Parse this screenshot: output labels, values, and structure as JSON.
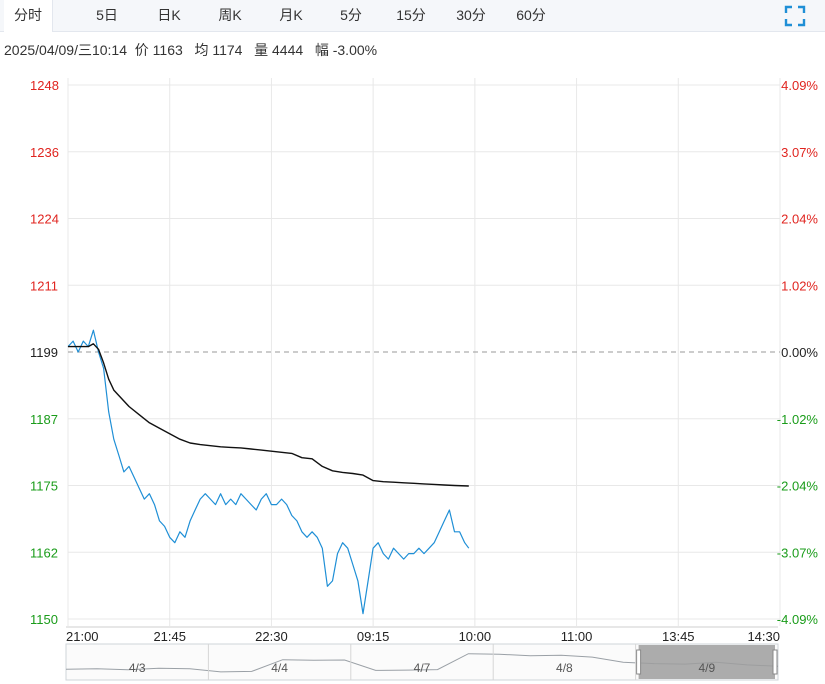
{
  "tabs": [
    "分时",
    "5日",
    "日K",
    "周K",
    "月K",
    "5分",
    "15分",
    "30分",
    "60分"
  ],
  "active_tab": "分时",
  "info": {
    "datetime": "2025/04/09/三10:14",
    "price_label": "价",
    "price": "1163",
    "avg_label": "均",
    "avg": "1174",
    "vol_label": "量",
    "vol": "4444",
    "chg_label": "幅",
    "chg": "-3.00%"
  },
  "colors": {
    "up": "#e0241f",
    "down": "#1a9c1a",
    "price_line": "#1f8fd6",
    "avg_line": "#111111",
    "grid": "#e8e8e8"
  },
  "chart_data": {
    "type": "line",
    "prev_close": 1199,
    "ylim": [
      1150,
      1248
    ],
    "y_ticks_left": [
      "1248",
      "1236",
      "1224",
      "1211",
      "1199",
      "1187",
      "1175",
      "1162",
      "1150"
    ],
    "y_ticks_right": [
      "4.09%",
      "3.07%",
      "2.04%",
      "1.02%",
      "0.00%",
      "-1.02%",
      "-2.04%",
      "-3.07%",
      "-4.09%"
    ],
    "x_ticks": [
      "21:00",
      "21:45",
      "22:30",
      "09:15",
      "10:00",
      "11:00",
      "13:45",
      "14:30"
    ],
    "x_tick_slots": [
      0,
      1,
      2,
      3,
      4,
      5,
      6,
      7
    ],
    "series": [
      {
        "role": "price",
        "x": [
          0,
          0.05,
          0.1,
          0.15,
          0.2,
          0.25,
          0.3,
          0.35,
          0.4,
          0.45,
          0.5,
          0.55,
          0.6,
          0.65,
          0.7,
          0.75,
          0.8,
          0.85,
          0.9,
          0.95,
          1.0,
          1.05,
          1.1,
          1.15,
          1.2,
          1.25,
          1.3,
          1.35,
          1.4,
          1.45,
          1.5,
          1.55,
          1.6,
          1.65,
          1.7,
          1.75,
          1.8,
          1.85,
          1.9,
          1.95,
          2.0,
          2.05,
          2.1,
          2.15,
          2.2,
          2.25,
          2.3,
          2.35,
          2.4,
          2.45,
          2.5,
          2.55,
          2.6,
          2.65,
          2.7,
          2.75,
          2.8,
          2.85,
          2.9,
          2.95,
          3.0,
          3.05,
          3.1,
          3.15,
          3.2,
          3.25,
          3.3,
          3.35,
          3.4,
          3.45,
          3.5,
          3.55,
          3.6,
          3.65,
          3.7,
          3.75,
          3.8,
          3.85,
          3.9,
          3.94
        ],
        "values": [
          1200,
          1201,
          1199,
          1201,
          1200,
          1203,
          1199,
          1196,
          1188,
          1183,
          1180,
          1177,
          1178,
          1176,
          1174,
          1172,
          1173,
          1171,
          1168,
          1167,
          1165,
          1164,
          1166,
          1165,
          1168,
          1170,
          1172,
          1173,
          1172,
          1171,
          1173,
          1171,
          1172,
          1171,
          1173,
          1172,
          1171,
          1170,
          1172,
          1173,
          1171,
          1171,
          1172,
          1171,
          1169,
          1168,
          1166,
          1165,
          1166,
          1165,
          1163,
          1156,
          1157,
          1162,
          1164,
          1163,
          1160,
          1157,
          1151,
          1157,
          1163,
          1164,
          1162,
          1161,
          1163,
          1162,
          1161,
          1162,
          1162,
          1163,
          1162,
          1163,
          1164,
          1166,
          1168,
          1170,
          1166,
          1166,
          1164,
          1163
        ]
      },
      {
        "role": "average",
        "x": [
          0,
          0.1,
          0.2,
          0.25,
          0.3,
          0.35,
          0.4,
          0.45,
          0.5,
          0.6,
          0.7,
          0.8,
          0.9,
          1.0,
          1.1,
          1.2,
          1.3,
          1.4,
          1.5,
          1.6,
          1.7,
          1.8,
          1.9,
          2.0,
          2.1,
          2.2,
          2.3,
          2.4,
          2.5,
          2.6,
          2.7,
          2.8,
          2.9,
          3.0,
          3.1,
          3.2,
          3.3,
          3.4,
          3.5,
          3.6,
          3.7,
          3.8,
          3.94
        ],
        "values": [
          1200,
          1200,
          1200,
          1200.5,
          1199.5,
          1197,
          1194,
          1192,
          1191,
          1189,
          1187.5,
          1186,
          1185,
          1184,
          1183,
          1182.3,
          1182,
          1181.8,
          1181.6,
          1181.5,
          1181.4,
          1181.2,
          1181,
          1180.8,
          1180.6,
          1180.4,
          1179.6,
          1179.4,
          1178,
          1177.2,
          1176.9,
          1176.7,
          1176.4,
          1175.4,
          1175.2,
          1175.1,
          1175.0,
          1174.9,
          1174.8,
          1174.7,
          1174.6,
          1174.5,
          1174.4
        ]
      }
    ],
    "navigator": {
      "days": [
        "4/3",
        "4/4",
        "4/7",
        "4/8",
        "4/9"
      ],
      "selected": "4/9"
    }
  }
}
